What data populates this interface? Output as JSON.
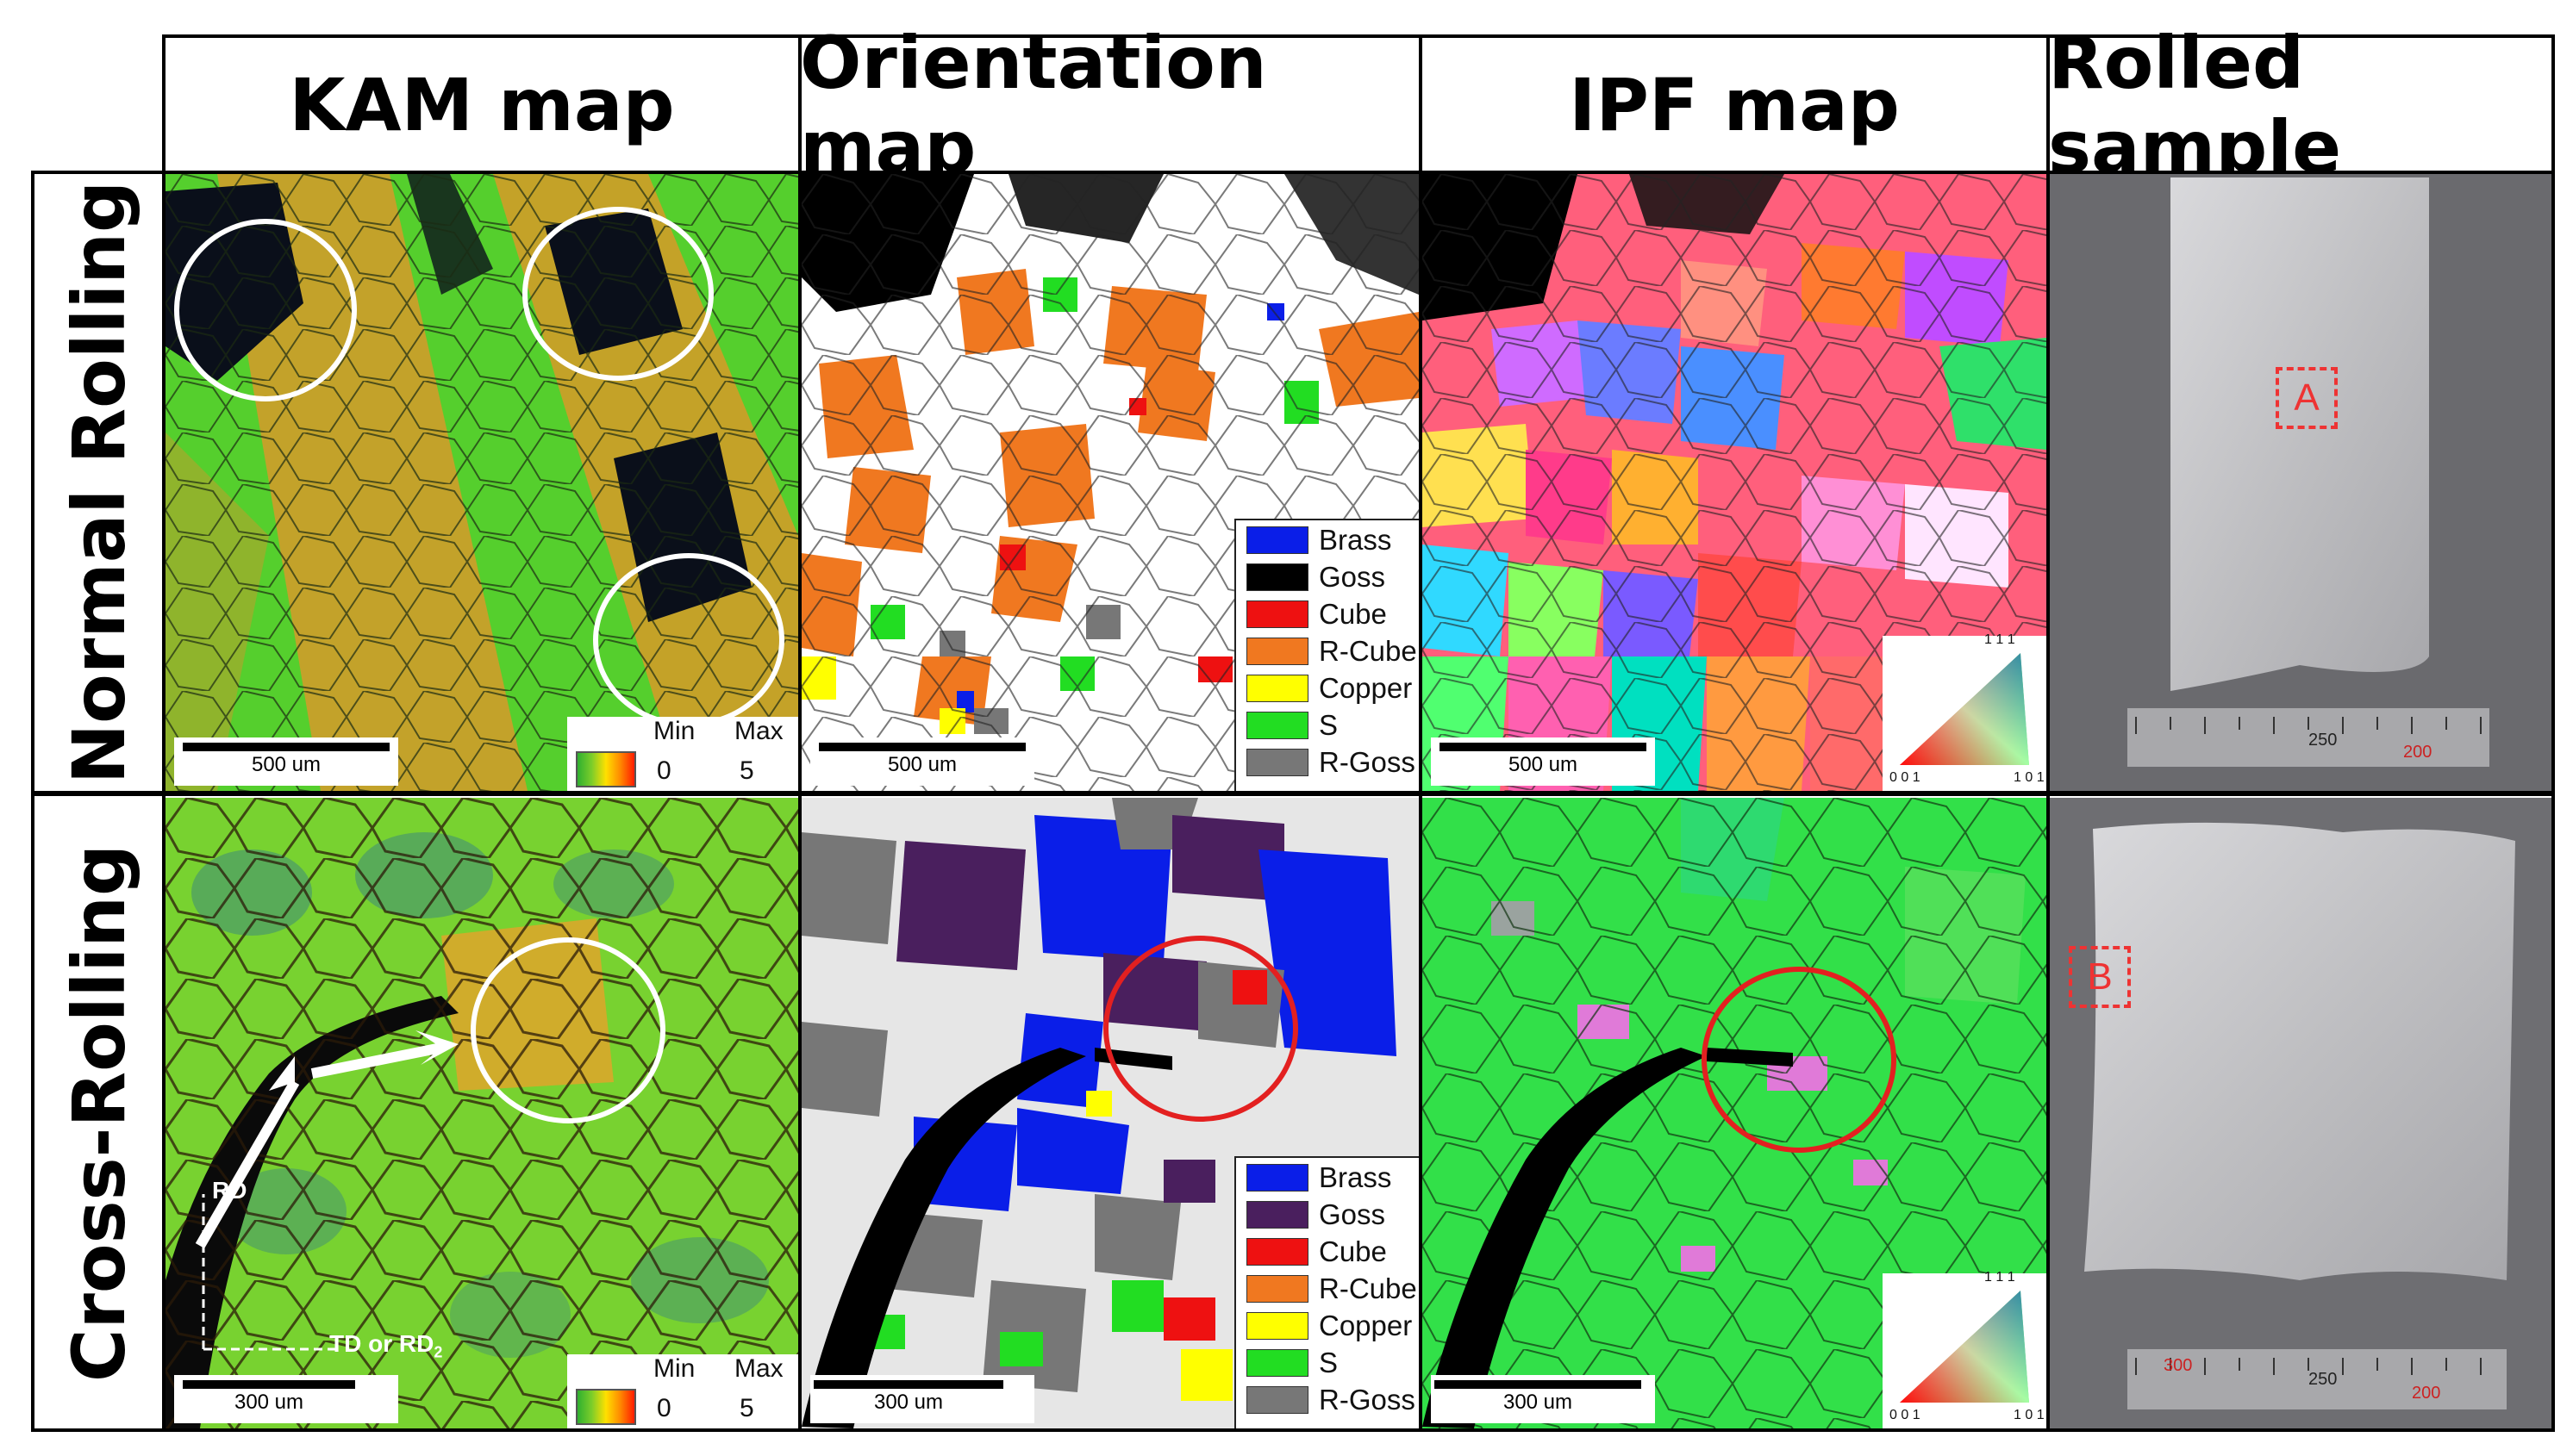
{
  "columns": [
    "KAM map",
    "Orientation map",
    "IPF map",
    "Rolled sample"
  ],
  "rows": [
    "Normal Rolling",
    "Cross-Rolling"
  ],
  "scale_bars": {
    "normal": "500 um",
    "cross": "300 um"
  },
  "kam_legend": {
    "min_label": "Min",
    "max_label": "Max",
    "min_value": "0",
    "max_value": "5"
  },
  "orientation_legend": [
    {
      "label": "Brass",
      "color_normal": "#0a1ee8",
      "color_cross": "#0a1ee8"
    },
    {
      "label": "Goss",
      "color_normal": "#000000",
      "color_cross": "#4a1f5e"
    },
    {
      "label": "Cube",
      "color_normal": "#ee1111",
      "color_cross": "#ee1111"
    },
    {
      "label": "R-Cube",
      "color_normal": "#f07820",
      "color_cross": "#f07820"
    },
    {
      "label": "Copper",
      "color_normal": "#ffff00",
      "color_cross": "#ffff00"
    },
    {
      "label": "S",
      "color_normal": "#22dd22",
      "color_cross": "#22dd22"
    },
    {
      "label": "R-Goss",
      "color_normal": "#777777",
      "color_cross": "#777777"
    }
  ],
  "ipf_legend": {
    "top": "1 1 1",
    "left": "0 0 1",
    "right": "1 0 1"
  },
  "annotations": {
    "rd": "RD",
    "td": "TD or RD",
    "td_sub": "2"
  },
  "samples": {
    "normal_label": "A",
    "cross_label": "B",
    "ruler_marks": [
      "300",
      "250",
      "200"
    ]
  }
}
